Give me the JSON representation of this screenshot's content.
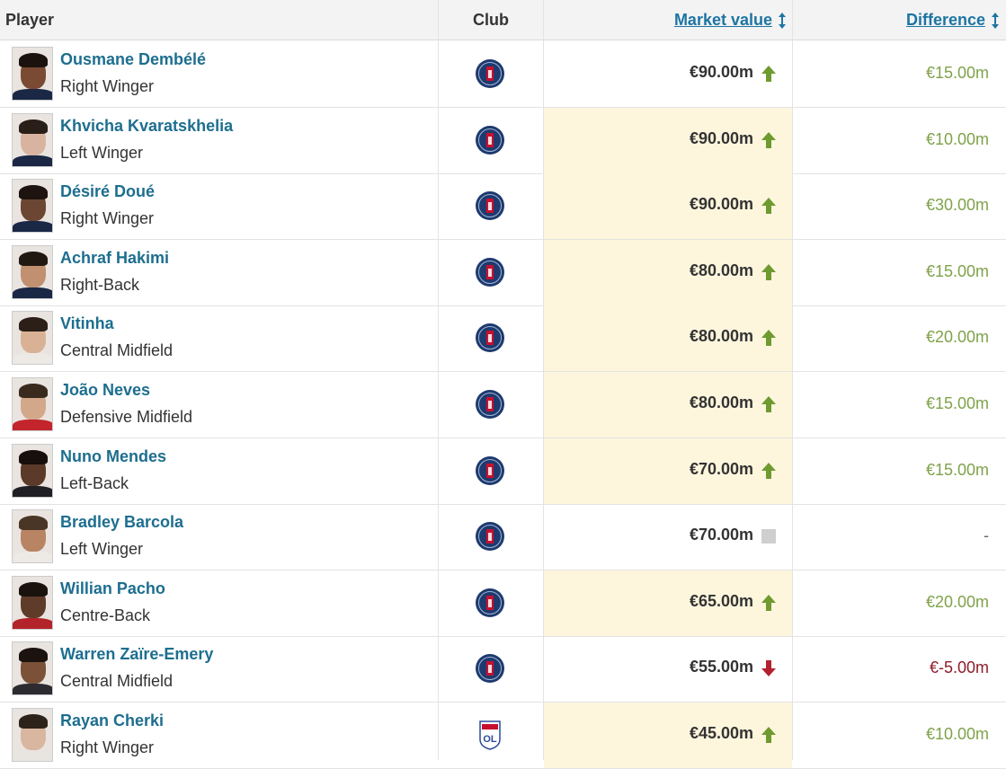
{
  "header": {
    "player": "Player",
    "club": "Club",
    "market_value": "Market value",
    "difference": "Difference"
  },
  "colors": {
    "link": "#1d75a3",
    "name": "#1d6e8f",
    "up": "#7fa24a",
    "down": "#8f1c2a",
    "highlight": "#fdf6dd"
  },
  "rows": [
    {
      "name": "Ousmane Dembélé",
      "position": "Right Winger",
      "club_icon": "psg-crest-icon",
      "value": "€90.00m",
      "trend": "up",
      "diff": "€15.00m",
      "highlight": false
    },
    {
      "name": "Khvicha Kvaratskhelia",
      "position": "Left Winger",
      "club_icon": "psg-crest-icon",
      "value": "€90.00m",
      "trend": "up",
      "diff": "€10.00m",
      "highlight": true
    },
    {
      "name": "Désiré Doué",
      "position": "Right Winger",
      "club_icon": "psg-crest-icon",
      "value": "€90.00m",
      "trend": "up",
      "diff": "€30.00m",
      "highlight": true
    },
    {
      "name": "Achraf Hakimi",
      "position": "Right-Back",
      "club_icon": "psg-crest-icon",
      "value": "€80.00m",
      "trend": "up",
      "diff": "€15.00m",
      "highlight": true
    },
    {
      "name": "Vitinha",
      "position": "Central Midfield",
      "club_icon": "psg-crest-icon",
      "value": "€80.00m",
      "trend": "up",
      "diff": "€20.00m",
      "highlight": true
    },
    {
      "name": "João Neves",
      "position": "Defensive Midfield",
      "club_icon": "psg-crest-icon",
      "value": "€80.00m",
      "trend": "up",
      "diff": "€15.00m",
      "highlight": true
    },
    {
      "name": "Nuno Mendes",
      "position": "Left-Back",
      "club_icon": "psg-crest-icon",
      "value": "€70.00m",
      "trend": "up",
      "diff": "€15.00m",
      "highlight": true
    },
    {
      "name": "Bradley Barcola",
      "position": "Left Winger",
      "club_icon": "psg-crest-icon",
      "value": "€70.00m",
      "trend": "none",
      "diff": "-",
      "highlight": false
    },
    {
      "name": "Willian Pacho",
      "position": "Centre-Back",
      "club_icon": "psg-crest-icon",
      "value": "€65.00m",
      "trend": "up",
      "diff": "€20.00m",
      "highlight": true
    },
    {
      "name": "Warren Zaïre-Emery",
      "position": "Central Midfield",
      "club_icon": "psg-crest-icon",
      "value": "€55.00m",
      "trend": "down",
      "diff": "€-5.00m",
      "highlight": false
    },
    {
      "name": "Rayan Cherki",
      "position": "Right Winger",
      "club_icon": "lyon-crest-icon",
      "value": "€45.00m",
      "trend": "up",
      "diff": "€10.00m",
      "highlight": true
    }
  ]
}
